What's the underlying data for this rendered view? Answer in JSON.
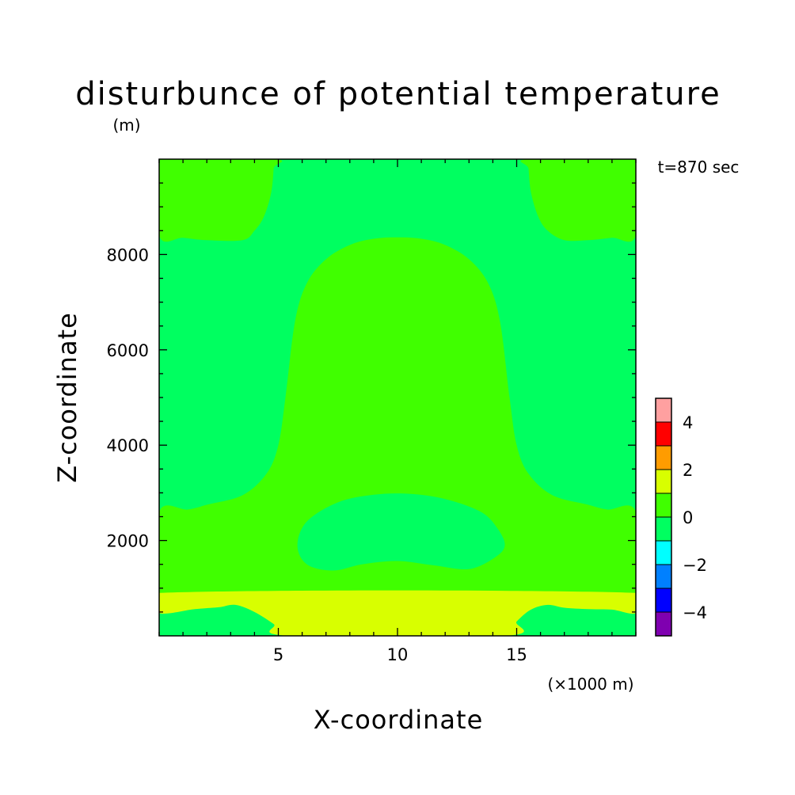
{
  "chart_data": {
    "type": "heatmap",
    "title": "disturbunce of potential temperature",
    "title_unit": "(m)",
    "time_label": "t=870 sec",
    "xlabel": "X-coordinate",
    "x_unit_label": "(×1000 m)",
    "ylabel": "Z-coordinate",
    "xlim": [
      0,
      20
    ],
    "ylim": [
      0,
      10000
    ],
    "xticks": [
      5,
      10,
      15
    ],
    "yticks": [
      2000,
      4000,
      6000,
      8000
    ],
    "grid": false,
    "colorbar": {
      "levels": [
        -5,
        -4,
        -3,
        -2,
        -1,
        0,
        1,
        2,
        3,
        4,
        5
      ],
      "colors": [
        "#7f00b0",
        "#0000ff",
        "#0080ff",
        "#00ffff",
        "#00ff60",
        "#40ff00",
        "#d8ff00",
        "#ff9c00",
        "#ff0000",
        "#ffa0a0"
      ],
      "tick_labels": [
        "4",
        "2",
        "0",
        "−2",
        "−4"
      ],
      "tick_values": [
        4,
        2,
        0,
        -2,
        -4
      ]
    },
    "regions": [
      {
        "name": "upper-left-positive",
        "range": "0 to 1",
        "color": "#40ff00",
        "outline": [
          [
            0,
            10000
          ],
          [
            4.8,
            10000
          ],
          [
            4.8,
            9800
          ],
          [
            4.7,
            9300
          ],
          [
            4.4,
            8800
          ],
          [
            4,
            8500
          ],
          [
            3.5,
            8300
          ],
          [
            2,
            8300
          ],
          [
            1,
            8350
          ],
          [
            0,
            8400
          ]
        ]
      },
      {
        "name": "upper-right-positive",
        "range": "0 to 1",
        "color": "#40ff00",
        "outline": [
          [
            20,
            10000
          ],
          [
            15.5,
            10000
          ],
          [
            15.5,
            9800
          ],
          [
            15.6,
            9300
          ],
          [
            15.9,
            8800
          ],
          [
            16.3,
            8500
          ],
          [
            17,
            8300
          ],
          [
            18,
            8300
          ],
          [
            19,
            8350
          ],
          [
            20,
            8400
          ]
        ]
      },
      {
        "name": "central-bell-positive",
        "range": "0 to 1",
        "color": "#40ff00",
        "outline": [
          [
            0,
            2600
          ],
          [
            1.2,
            2650
          ],
          [
            2,
            2750
          ],
          [
            3.5,
            2950
          ],
          [
            4.5,
            3400
          ],
          [
            5,
            4000
          ],
          [
            5.3,
            5000
          ],
          [
            5.7,
            6600
          ],
          [
            6.2,
            7400
          ],
          [
            7,
            7900
          ],
          [
            8,
            8200
          ],
          [
            9,
            8330
          ],
          [
            10,
            8360
          ],
          [
            11,
            8330
          ],
          [
            12,
            8200
          ],
          [
            13,
            7900
          ],
          [
            13.8,
            7400
          ],
          [
            14.3,
            6600
          ],
          [
            14.7,
            5000
          ],
          [
            15,
            4000
          ],
          [
            15.5,
            3400
          ],
          [
            16.5,
            2950
          ],
          [
            18,
            2750
          ],
          [
            18.8,
            2650
          ],
          [
            20,
            2600
          ],
          [
            20,
            900
          ],
          [
            0,
            900
          ]
        ]
      },
      {
        "name": "central-oval-zero",
        "range": "-1 to 0",
        "color": "#00ff60",
        "outline": [
          [
            5.8,
            1900
          ],
          [
            6.2,
            2400
          ],
          [
            7.5,
            2800
          ],
          [
            9,
            2960
          ],
          [
            10.5,
            2980
          ],
          [
            12,
            2870
          ],
          [
            13.5,
            2600
          ],
          [
            14.2,
            2250
          ],
          [
            14.5,
            1900
          ],
          [
            14.1,
            1650
          ],
          [
            13,
            1400
          ],
          [
            11.5,
            1480
          ],
          [
            10,
            1570
          ],
          [
            8.5,
            1500
          ],
          [
            7.3,
            1370
          ],
          [
            6.2,
            1500
          ]
        ]
      },
      {
        "name": "surface-warm-layer",
        "range": "1 to 2",
        "color": "#d8ff00",
        "outline": [
          [
            0,
            900
          ],
          [
            20,
            900
          ],
          [
            20,
            480
          ],
          [
            19,
            550
          ],
          [
            18,
            560
          ],
          [
            17,
            590
          ],
          [
            16.3,
            650
          ],
          [
            15.6,
            550
          ],
          [
            15,
            300
          ],
          [
            14.5,
            0
          ],
          [
            5.5,
            0
          ],
          [
            4.8,
            250
          ],
          [
            4,
            500
          ],
          [
            3.2,
            650
          ],
          [
            2.5,
            600
          ],
          [
            1.5,
            560
          ],
          [
            0,
            480
          ]
        ]
      }
    ]
  }
}
